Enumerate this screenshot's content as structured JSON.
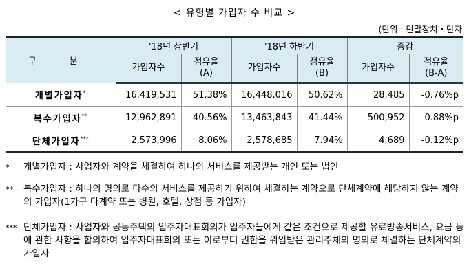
{
  "title": "< 유형별 가입자 수 비교 >",
  "unit": "(단위 : 단말장치・단자",
  "table": {
    "header": {
      "category": "구 분",
      "groups": [
        "'18년 상반기",
        "'18년 하반기",
        "증감"
      ],
      "sub_count": "가입자수",
      "sub_share_a": "점유율\n(A)",
      "sub_share_b": "점유율\n(B)",
      "sub_share_diff": "점유율\n(B-A)"
    },
    "rows": [
      {
        "name": "개별가입자",
        "mark": "*",
        "h1_count": "16,419,531",
        "h1_share": "51.38%",
        "h2_count": "16,448,016",
        "h2_share": "50.62%",
        "diff_count": "28,485",
        "diff_share": "-0.76%p"
      },
      {
        "name": "복수가입자",
        "mark": "**",
        "h1_count": "12,962,891",
        "h1_share": "40.56%",
        "h2_count": "13,463,843",
        "h2_share": "41.44%",
        "diff_count": "500,952",
        "diff_share": "0.88%p"
      },
      {
        "name": "단체가입자",
        "mark": "***",
        "h1_count": "2,573,996",
        "h1_share": "8.06%",
        "h2_count": "2,578,685",
        "h2_share": "7.94%",
        "diff_count": "4,689",
        "diff_share": "-0.12%p"
      }
    ]
  },
  "notes": [
    {
      "mark": "*",
      "text": "개별가입자 : 사업자와 계약을 체결하여 하나의 서비스를 제공받는 개인 또는 법인"
    },
    {
      "mark": "**",
      "text": "복수가입자 : 하나의 명의로 다수의 서비스를 제공하기 위하여 체결하는 계약으로 단체계약에 해당하지 않는 계약의 가입자(1가구 다계약 또는 병원, 호텔, 상점 등 가입자)"
    },
    {
      "mark": "***",
      "text": "단체가입자 : 사업자와 공동주택의 입주자대표회의가 입주자들에게 같은 조건으로 제공할 유료방송서비스, 요금 등에 관한 사항을 합의하여 입주자대표회의 또는 이로부터 권한을 위임받은 관리주체의 명의로 체결하는 단체계약의 가입자"
    }
  ]
}
